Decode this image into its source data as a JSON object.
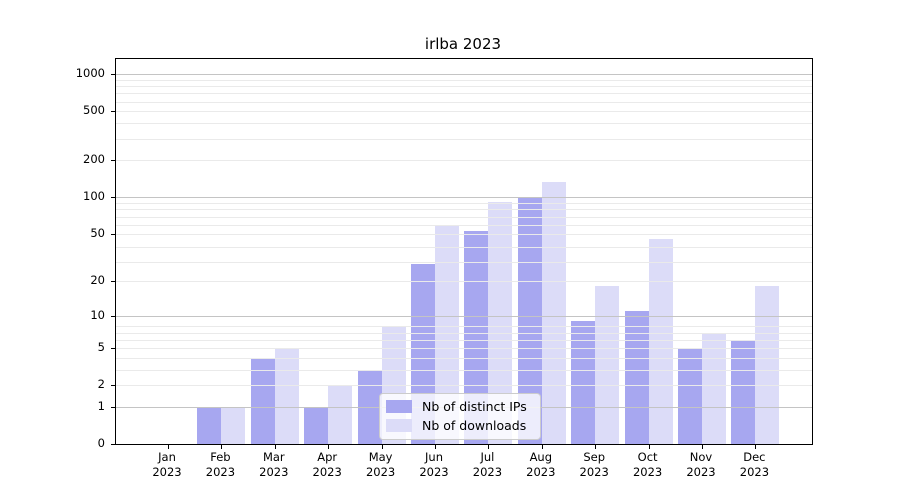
{
  "title": "irlba 2023",
  "chart_data": {
    "type": "bar",
    "title": "irlba 2023",
    "categories": [
      "Jan",
      "Feb",
      "Mar",
      "Apr",
      "May",
      "Jun",
      "Jul",
      "Aug",
      "Sep",
      "Oct",
      "Nov",
      "Dec"
    ],
    "x_year": "2023",
    "series": [
      {
        "name": "Nb of distinct IPs",
        "color": "#a7a7f0",
        "values": [
          0,
          1,
          4,
          1,
          3,
          28,
          52,
          100,
          9,
          11,
          5,
          6
        ]
      },
      {
        "name": "Nb of downloads",
        "color": "#dcdcf8",
        "values": [
          0,
          1,
          5,
          2,
          8,
          58,
          90,
          133,
          18,
          45,
          7,
          18
        ]
      }
    ],
    "xlabel": "",
    "ylabel": "",
    "yscale": "log1p",
    "y_ticks": [
      1000,
      500,
      200,
      100,
      50,
      20,
      10,
      5,
      2,
      1,
      0
    ],
    "ylim": [
      0,
      1325
    ],
    "grid": true,
    "legend": {
      "position": "inside-bottom-center",
      "entries": [
        "Nb of distinct IPs",
        "Nb of downloads"
      ]
    },
    "colors": {
      "major_grid": "#c4c4c4",
      "minor_grid": "#eaeaea",
      "spine": "#000000",
      "background": "#ffffff"
    }
  }
}
